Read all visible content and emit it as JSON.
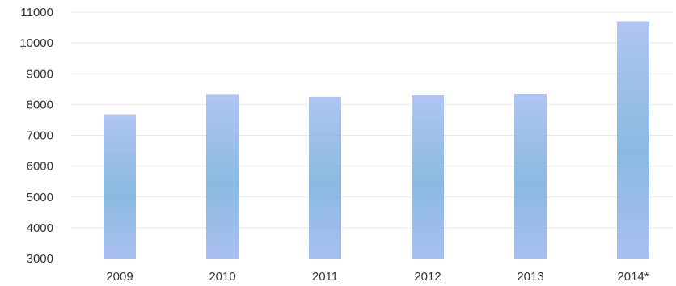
{
  "chart_data": {
    "type": "bar",
    "categories": [
      "2009",
      "2010",
      "2011",
      "2012",
      "2013",
      "2014*"
    ],
    "values": [
      7680,
      8340,
      8250,
      8300,
      8350,
      10700
    ],
    "title": "",
    "xlabel": "",
    "ylabel": "",
    "ylim": [
      3000,
      11000
    ],
    "y_ticks": [
      3000,
      4000,
      5000,
      6000,
      7000,
      8000,
      9000,
      10000,
      11000
    ],
    "grid": true,
    "legend": "none",
    "colors": {
      "bar_top": "#a9bff1",
      "bar_middle": "#7fb4de",
      "bar_bottom": "#a2b9ef",
      "grid": "#e8e8e8",
      "text": "#333333"
    }
  }
}
